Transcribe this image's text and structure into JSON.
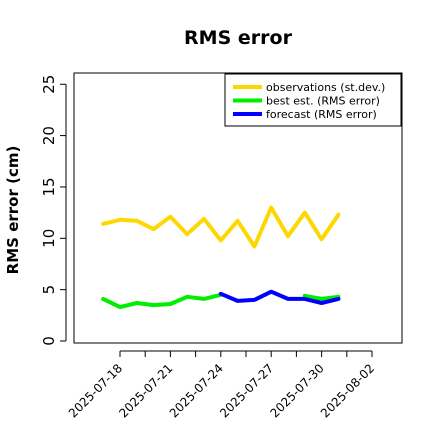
{
  "chart_data": {
    "type": "line",
    "title": "RMS error",
    "xlabel": "",
    "ylabel": "RMS error (cm)",
    "ylim": [
      0,
      26
    ],
    "yticks": [
      0,
      5,
      10,
      15,
      20,
      25
    ],
    "x": [
      "2025-07-17",
      "2025-07-18",
      "2025-07-19",
      "2025-07-20",
      "2025-07-21",
      "2025-07-22",
      "2025-07-23",
      "2025-07-24",
      "2025-07-25",
      "2025-07-26",
      "2025-07-27",
      "2025-07-28",
      "2025-07-29",
      "2025-07-30",
      "2025-07-31"
    ],
    "x_tick_labels": [
      {
        "label": "2025-07-18",
        "date": "2025-07-18",
        "color": "#000000"
      },
      {
        "label": "2025-07-21",
        "date": "2025-07-21",
        "color": "#000000"
      },
      {
        "label": "2025-07-24",
        "date": "2025-07-24",
        "color": "#228B22"
      },
      {
        "label": "2025-07-27",
        "date": "2025-07-27",
        "color": "#000000"
      },
      {
        "label": "2025-07-30",
        "date": "2025-07-30",
        "color": "#000000"
      },
      {
        "label": "2025-08-02",
        "date": "2025-08-02",
        "color": "#000000"
      }
    ],
    "x_axis_extra_ticks": [
      "2025-07-19.5",
      "2025-07-22.5",
      "2025-07-25.5",
      "2025-07-28.5",
      "2025-07-31.5"
    ],
    "legend_position": "top-right",
    "series": [
      {
        "name": "observations (st.dev.)",
        "color": "#FFD700",
        "values": [
          11.4,
          11.8,
          11.7,
          10.9,
          12.1,
          10.4,
          11.9,
          9.8,
          11.7,
          9.2,
          13.0,
          10.2,
          12.5,
          9.9,
          12.3
        ]
      },
      {
        "name": "best est. (RMS error)",
        "color": "#00EE00",
        "values": [
          4.1,
          3.3,
          3.7,
          3.5,
          3.6,
          4.3,
          4.1,
          4.5,
          null,
          null,
          null,
          null,
          4.4,
          4.1,
          4.3
        ]
      },
      {
        "name": "forecast (RMS error)",
        "color": "#0000FF",
        "values": [
          null,
          null,
          null,
          null,
          null,
          null,
          null,
          4.6,
          3.9,
          4.0,
          4.8,
          4.1,
          4.1,
          3.7,
          4.1
        ]
      }
    ]
  }
}
